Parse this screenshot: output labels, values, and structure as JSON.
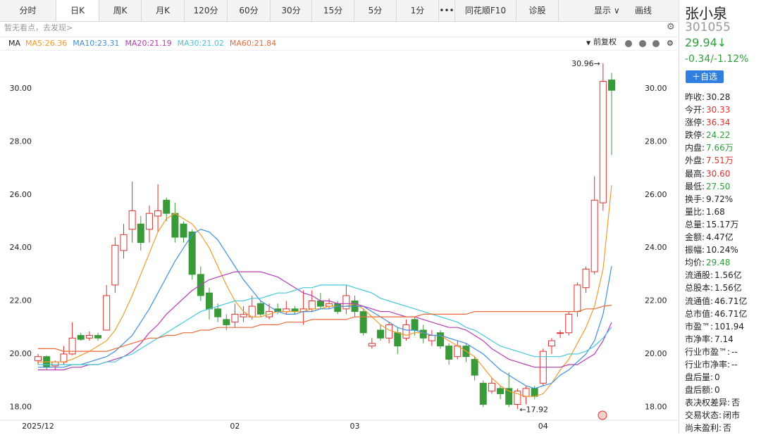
{
  "toolbar": {
    "tabs": [
      {
        "label": "分时"
      },
      {
        "label": "日K",
        "selected": true
      },
      {
        "label": "周K"
      },
      {
        "label": "月K"
      },
      {
        "label": "120分"
      },
      {
        "label": "60分"
      },
      {
        "label": "30分"
      },
      {
        "label": "15分"
      },
      {
        "label": "5分"
      },
      {
        "label": "1分"
      },
      {
        "label": "•••"
      },
      {
        "label": "同花顺F10"
      },
      {
        "label": "诊股"
      }
    ],
    "display": "显示",
    "draw": "画线"
  },
  "notice": "暂无看点，去发现>",
  "stock": {
    "name": "张小泉",
    "code": "301055",
    "price": "29.94↓",
    "change": "-0.34/-1.12%",
    "color": "#2e9e3a",
    "add_button": "＋自选",
    "rows": [
      {
        "label": "昨收:",
        "value": "30.28"
      },
      {
        "label": "今开:",
        "value": "30.33",
        "color": "#e0302c"
      },
      {
        "label": "涨停:",
        "value": "36.34",
        "color": "#e0302c"
      },
      {
        "label": "跌停:",
        "value": "24.22",
        "color": "#2e9e3a"
      },
      {
        "label": "内盘:",
        "value": "7.66万",
        "color": "#2e9e3a"
      },
      {
        "label": "外盘:",
        "value": "7.51万",
        "color": "#e0302c"
      },
      {
        "label": "最高:",
        "value": "30.60",
        "color": "#e0302c"
      },
      {
        "label": "最低:",
        "value": "27.50",
        "color": "#2e9e3a"
      },
      {
        "label": "换手:",
        "value": "9.72%"
      },
      {
        "label": "量比:",
        "value": "1.68"
      },
      {
        "label": "总量:",
        "value": "15.17万"
      },
      {
        "label": "金额:",
        "value": "4.47亿"
      },
      {
        "label": "振幅:",
        "value": "10.24%"
      },
      {
        "label": "均价:",
        "value": "29.48",
        "color": "#2e9e3a"
      },
      {
        "label": "流通股:",
        "value": "1.56亿"
      },
      {
        "label": "总股本:",
        "value": "1.56亿"
      },
      {
        "label": "流通值:",
        "value": "46.71亿"
      },
      {
        "label": "总市值:",
        "value": "46.71亿"
      },
      {
        "label": "市盈™:",
        "value": "101.94"
      },
      {
        "label": "市净率:",
        "value": "7.14"
      },
      {
        "label": "行业市盈™:",
        "value": "--"
      },
      {
        "label": "行业市净率:",
        "value": "--"
      },
      {
        "label": "盘后量:",
        "value": "0"
      },
      {
        "label": "盘后额:",
        "value": "0"
      },
      {
        "label": "表决权差异:",
        "value": "否"
      },
      {
        "label": "交易状态:",
        "value": "闭市"
      },
      {
        "label": "尚未盈利:",
        "value": "否"
      }
    ]
  },
  "chart_data": {
    "type": "candlestick",
    "indicator": "MA",
    "adjust": "前复权",
    "up_color": "#e0302c",
    "down_color": "#3a9a3a",
    "grid": false,
    "categories": [
      "2025/12",
      null,
      null,
      null,
      null,
      null,
      null,
      null,
      null,
      null,
      null,
      null,
      null,
      null,
      null,
      null,
      null,
      null,
      null,
      null,
      null,
      null,
      null,
      "02",
      null,
      null,
      null,
      null,
      null,
      null,
      null,
      null,
      null,
      null,
      null,
      null,
      null,
      "03",
      null,
      null,
      null,
      null,
      null,
      null,
      null,
      null,
      null,
      null,
      null,
      null,
      null,
      null,
      null,
      null,
      null,
      null,
      null,
      null,
      null,
      "04",
      null,
      null,
      null,
      null,
      null,
      null,
      null,
      null
    ],
    "open": [
      19.75,
      19.9,
      19.55,
      19.7,
      20.0,
      20.7,
      20.6,
      20.7,
      20.9,
      22.6,
      23.9,
      24.7,
      24.9,
      24.7,
      25.2,
      25.8,
      25.3,
      24.9,
      24.6,
      23.0,
      22.3,
      21.7,
      21.3,
      21.2,
      21.4,
      21.4,
      21.9,
      21.4,
      21.7,
      21.6,
      21.7,
      21.6,
      21.7,
      22.0,
      21.8,
      21.9,
      21.7,
      22.0,
      21.6,
      20.3,
      20.9,
      20.6,
      20.8,
      20.6,
      21.3,
      20.9,
      20.5,
      20.8,
      20.3,
      19.9,
      20.3,
      19.8,
      18.9,
      18.6,
      18.7,
      18.7,
      18.1,
      18.4,
      18.7,
      18.9,
      20.3,
      20.8,
      20.8,
      21.6,
      22.5,
      23.1,
      25.7,
      30.33
    ],
    "high": [
      20.0,
      19.95,
      19.75,
      20.3,
      21.2,
      20.8,
      20.85,
      20.8,
      22.6,
      24.4,
      24.9,
      26.5,
      25.2,
      25.6,
      26.4,
      25.9,
      25.7,
      25.0,
      24.7,
      23.3,
      22.5,
      21.9,
      21.5,
      21.9,
      21.8,
      22.2,
      22.0,
      21.9,
      21.9,
      22.0,
      21.8,
      22.4,
      22.4,
      22.3,
      22.1,
      22.0,
      22.6,
      22.2,
      21.7,
      20.6,
      21.1,
      21.2,
      21.0,
      21.3,
      21.4,
      21.1,
      20.9,
      20.9,
      20.4,
      20.5,
      20.4,
      19.9,
      19.0,
      19.1,
      18.8,
      19.3,
      18.7,
      18.8,
      18.8,
      20.2,
      20.6,
      20.9,
      21.6,
      22.7,
      23.3,
      26.7,
      30.96,
      30.6
    ],
    "low": [
      19.6,
      19.4,
      19.4,
      19.6,
      19.95,
      20.5,
      20.5,
      20.5,
      20.9,
      22.3,
      23.6,
      24.2,
      23.9,
      24.2,
      24.6,
      25.0,
      24.2,
      24.2,
      22.8,
      22.0,
      21.3,
      21.2,
      20.9,
      21.0,
      21.2,
      21.3,
      21.4,
      21.3,
      21.5,
      21.5,
      21.5,
      21.1,
      21.6,
      21.7,
      21.7,
      21.5,
      21.5,
      21.4,
      20.7,
      20.2,
      20.5,
      20.4,
      20.0,
      20.5,
      20.7,
      20.4,
      20.3,
      20.2,
      19.6,
      19.8,
      19.7,
      19.0,
      18.0,
      18.5,
      18.3,
      18.0,
      17.92,
      18.1,
      18.3,
      18.8,
      20.0,
      20.6,
      20.7,
      21.4,
      22.3,
      23.0,
      25.4,
      27.5
    ],
    "close": [
      19.9,
      19.5,
      19.7,
      20.0,
      20.6,
      20.55,
      20.7,
      20.6,
      22.2,
      24.1,
      24.5,
      25.4,
      24.2,
      25.3,
      25.4,
      25.3,
      24.4,
      24.4,
      23.0,
      22.2,
      21.7,
      21.4,
      21.1,
      21.5,
      21.5,
      21.8,
      21.5,
      21.6,
      21.6,
      21.7,
      21.6,
      21.7,
      22.0,
      21.8,
      21.9,
      21.6,
      22.2,
      21.6,
      20.8,
      20.4,
      20.6,
      21.1,
      20.3,
      21.1,
      20.9,
      20.6,
      20.7,
      20.3,
      19.8,
      20.3,
      19.9,
      19.2,
      18.1,
      18.9,
      18.5,
      18.1,
      18.6,
      18.7,
      18.4,
      20.1,
      20.5,
      20.8,
      21.5,
      22.6,
      23.2,
      25.8,
      30.28,
      29.94
    ],
    "series": [
      {
        "name": "MA5:26.36",
        "color": "#f39a2b",
        "values": [
          19.7,
          19.7,
          19.7,
          19.7,
          19.8,
          19.95,
          20.1,
          20.3,
          20.5,
          20.9,
          21.5,
          22.2,
          23.0,
          23.8,
          24.6,
          25.1,
          25.3,
          25.1,
          24.9,
          24.5,
          24.0,
          23.3,
          22.6,
          22.0,
          21.6,
          21.4,
          21.4,
          21.5,
          21.6,
          21.6,
          21.6,
          21.6,
          21.7,
          21.7,
          21.8,
          21.8,
          21.8,
          21.9,
          21.7,
          21.4,
          21.1,
          20.9,
          20.8,
          20.7,
          20.8,
          20.8,
          20.7,
          20.7,
          20.5,
          20.3,
          20.1,
          19.9,
          19.5,
          19.1,
          18.8,
          18.6,
          18.5,
          18.4,
          18.4,
          18.5,
          18.9,
          19.4,
          19.8,
          20.4,
          21.0,
          21.8,
          23.2,
          26.36
        ]
      },
      {
        "name": "MA10:23.31",
        "color": "#3f8fdc",
        "values": [
          19.5,
          19.5,
          19.5,
          19.5,
          19.6,
          19.6,
          19.7,
          19.8,
          19.9,
          20.1,
          20.4,
          20.7,
          21.2,
          21.7,
          22.3,
          22.9,
          23.5,
          24.0,
          24.5,
          24.7,
          24.6,
          24.3,
          23.8,
          23.3,
          22.8,
          22.4,
          22.0,
          21.8,
          21.6,
          21.5,
          21.5,
          21.6,
          21.6,
          21.7,
          21.7,
          21.8,
          21.8,
          21.8,
          21.8,
          21.6,
          21.4,
          21.2,
          21.0,
          20.9,
          20.9,
          20.8,
          20.7,
          20.7,
          20.6,
          20.5,
          20.4,
          20.2,
          20.0,
          19.7,
          19.4,
          19.2,
          19.0,
          18.8,
          18.7,
          18.8,
          18.9,
          19.2,
          19.4,
          19.7,
          20.0,
          20.5,
          21.5,
          23.31
        ]
      },
      {
        "name": "MA20:21.19",
        "color": "#b43cb4",
        "values": [
          19.4,
          19.4,
          19.4,
          19.4,
          19.5,
          19.5,
          19.6,
          19.6,
          19.7,
          19.8,
          19.9,
          20.1,
          20.4,
          20.8,
          21.1,
          21.5,
          21.8,
          22.1,
          22.4,
          22.6,
          22.8,
          22.9,
          23.0,
          23.1,
          23.1,
          23.1,
          23.1,
          23.0,
          22.9,
          22.7,
          22.5,
          22.3,
          22.2,
          22.0,
          22.0,
          21.9,
          21.9,
          21.9,
          21.8,
          21.7,
          21.6,
          21.6,
          21.5,
          21.4,
          21.4,
          21.3,
          21.2,
          21.1,
          21.0,
          21.0,
          20.9,
          20.7,
          20.5,
          20.2,
          20.0,
          19.8,
          19.7,
          19.6,
          19.5,
          19.5,
          19.5,
          19.5,
          19.6,
          19.6,
          19.8,
          20.0,
          20.5,
          21.19
        ]
      },
      {
        "name": "MA30:21.02",
        "color": "#45c8d8",
        "values": [
          19.6,
          19.6,
          19.6,
          19.6,
          19.6,
          19.6,
          19.6,
          19.6,
          19.7,
          19.7,
          19.9,
          20.0,
          20.2,
          20.4,
          20.6,
          20.8,
          21.0,
          21.2,
          21.4,
          21.6,
          21.7,
          21.8,
          21.9,
          22.0,
          22.0,
          22.1,
          22.1,
          22.2,
          22.3,
          22.3,
          22.4,
          22.5,
          22.5,
          22.6,
          22.6,
          22.6,
          22.6,
          22.5,
          22.4,
          22.3,
          22.1,
          22.0,
          21.9,
          21.8,
          21.7,
          21.6,
          21.5,
          21.4,
          21.3,
          21.2,
          21.0,
          20.9,
          20.7,
          20.5,
          20.3,
          20.2,
          20.1,
          20.0,
          19.9,
          19.9,
          19.9,
          19.9,
          20.0,
          20.0,
          20.1,
          20.3,
          20.6,
          21.02
        ]
      },
      {
        "name": "MA60:21.84",
        "color": "#ec6a3a",
        "values": [
          20.2,
          20.2,
          20.2,
          20.1,
          20.1,
          20.1,
          20.1,
          20.1,
          20.1,
          20.2,
          20.3,
          20.4,
          20.5,
          20.6,
          20.6,
          20.7,
          20.7,
          20.8,
          20.8,
          20.9,
          20.9,
          21.0,
          21.0,
          21.0,
          21.0,
          21.0,
          21.1,
          21.1,
          21.1,
          21.2,
          21.2,
          21.2,
          21.3,
          21.3,
          21.3,
          21.3,
          21.3,
          21.4,
          21.4,
          21.4,
          21.4,
          21.4,
          21.4,
          21.4,
          21.4,
          21.5,
          21.5,
          21.5,
          21.5,
          21.5,
          21.5,
          21.6,
          21.6,
          21.6,
          21.6,
          21.6,
          21.6,
          21.6,
          21.6,
          21.6,
          21.6,
          21.6,
          21.6,
          21.6,
          21.7,
          21.7,
          21.8,
          21.84
        ]
      }
    ],
    "ylim": [
      17.45,
      31.5
    ],
    "yticks": [
      {
        "value": 18,
        "label": "18.00"
      },
      {
        "value": 20,
        "label": "20.00"
      },
      {
        "value": 22,
        "label": "22.00"
      },
      {
        "value": 24,
        "label": "24.00"
      },
      {
        "value": 26,
        "label": "26.00"
      },
      {
        "value": 28,
        "label": "28.00"
      },
      {
        "value": 30,
        "label": "30.00"
      }
    ],
    "annotations": [
      {
        "label": "30.96→",
        "value": 30.96
      },
      {
        "label": "←17.92",
        "value": 17.92
      }
    ]
  }
}
